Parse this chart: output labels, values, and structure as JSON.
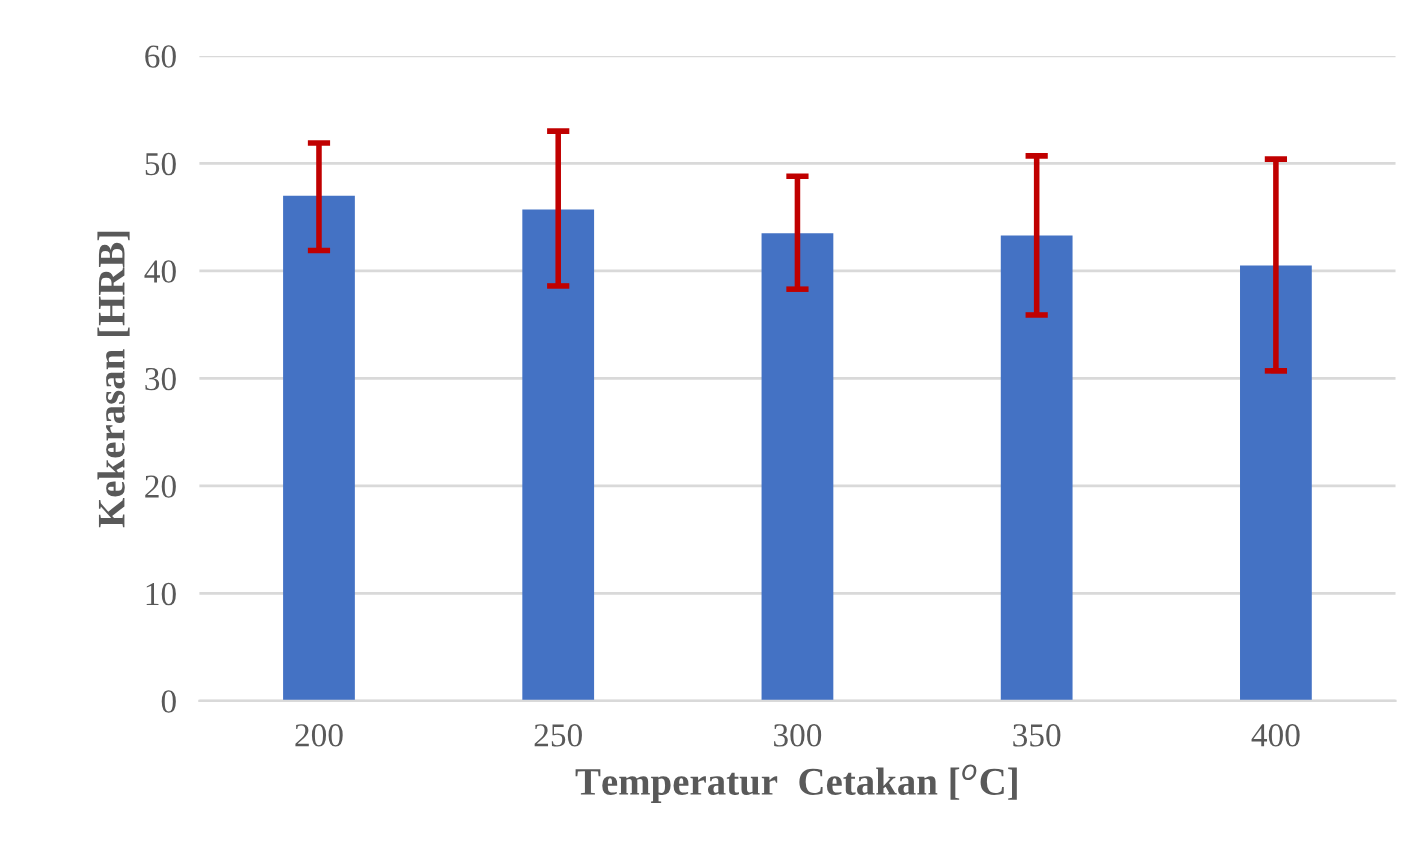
{
  "chart_data": {
    "type": "bar",
    "xlabel": "Temperatur  Cetakan [$^{o}$C]",
    "ylabel": "Kekerasan [HRB]",
    "categories": [
      "200",
      "250",
      "300",
      "350",
      "400"
    ],
    "values": [
      47.0,
      45.7,
      43.5,
      43.3,
      40.5
    ],
    "errors": [
      [
        41.9,
        51.9
      ],
      [
        38.6,
        53.0
      ],
      [
        38.3,
        48.8
      ],
      [
        35.9,
        50.7
      ],
      [
        30.7,
        50.4
      ]
    ],
    "color": "#4472c4",
    "ylim": [
      0,
      60
    ],
    "yticks": [
      0,
      10,
      20,
      30,
      40,
      50,
      60
    ],
    "grid": "y"
  }
}
